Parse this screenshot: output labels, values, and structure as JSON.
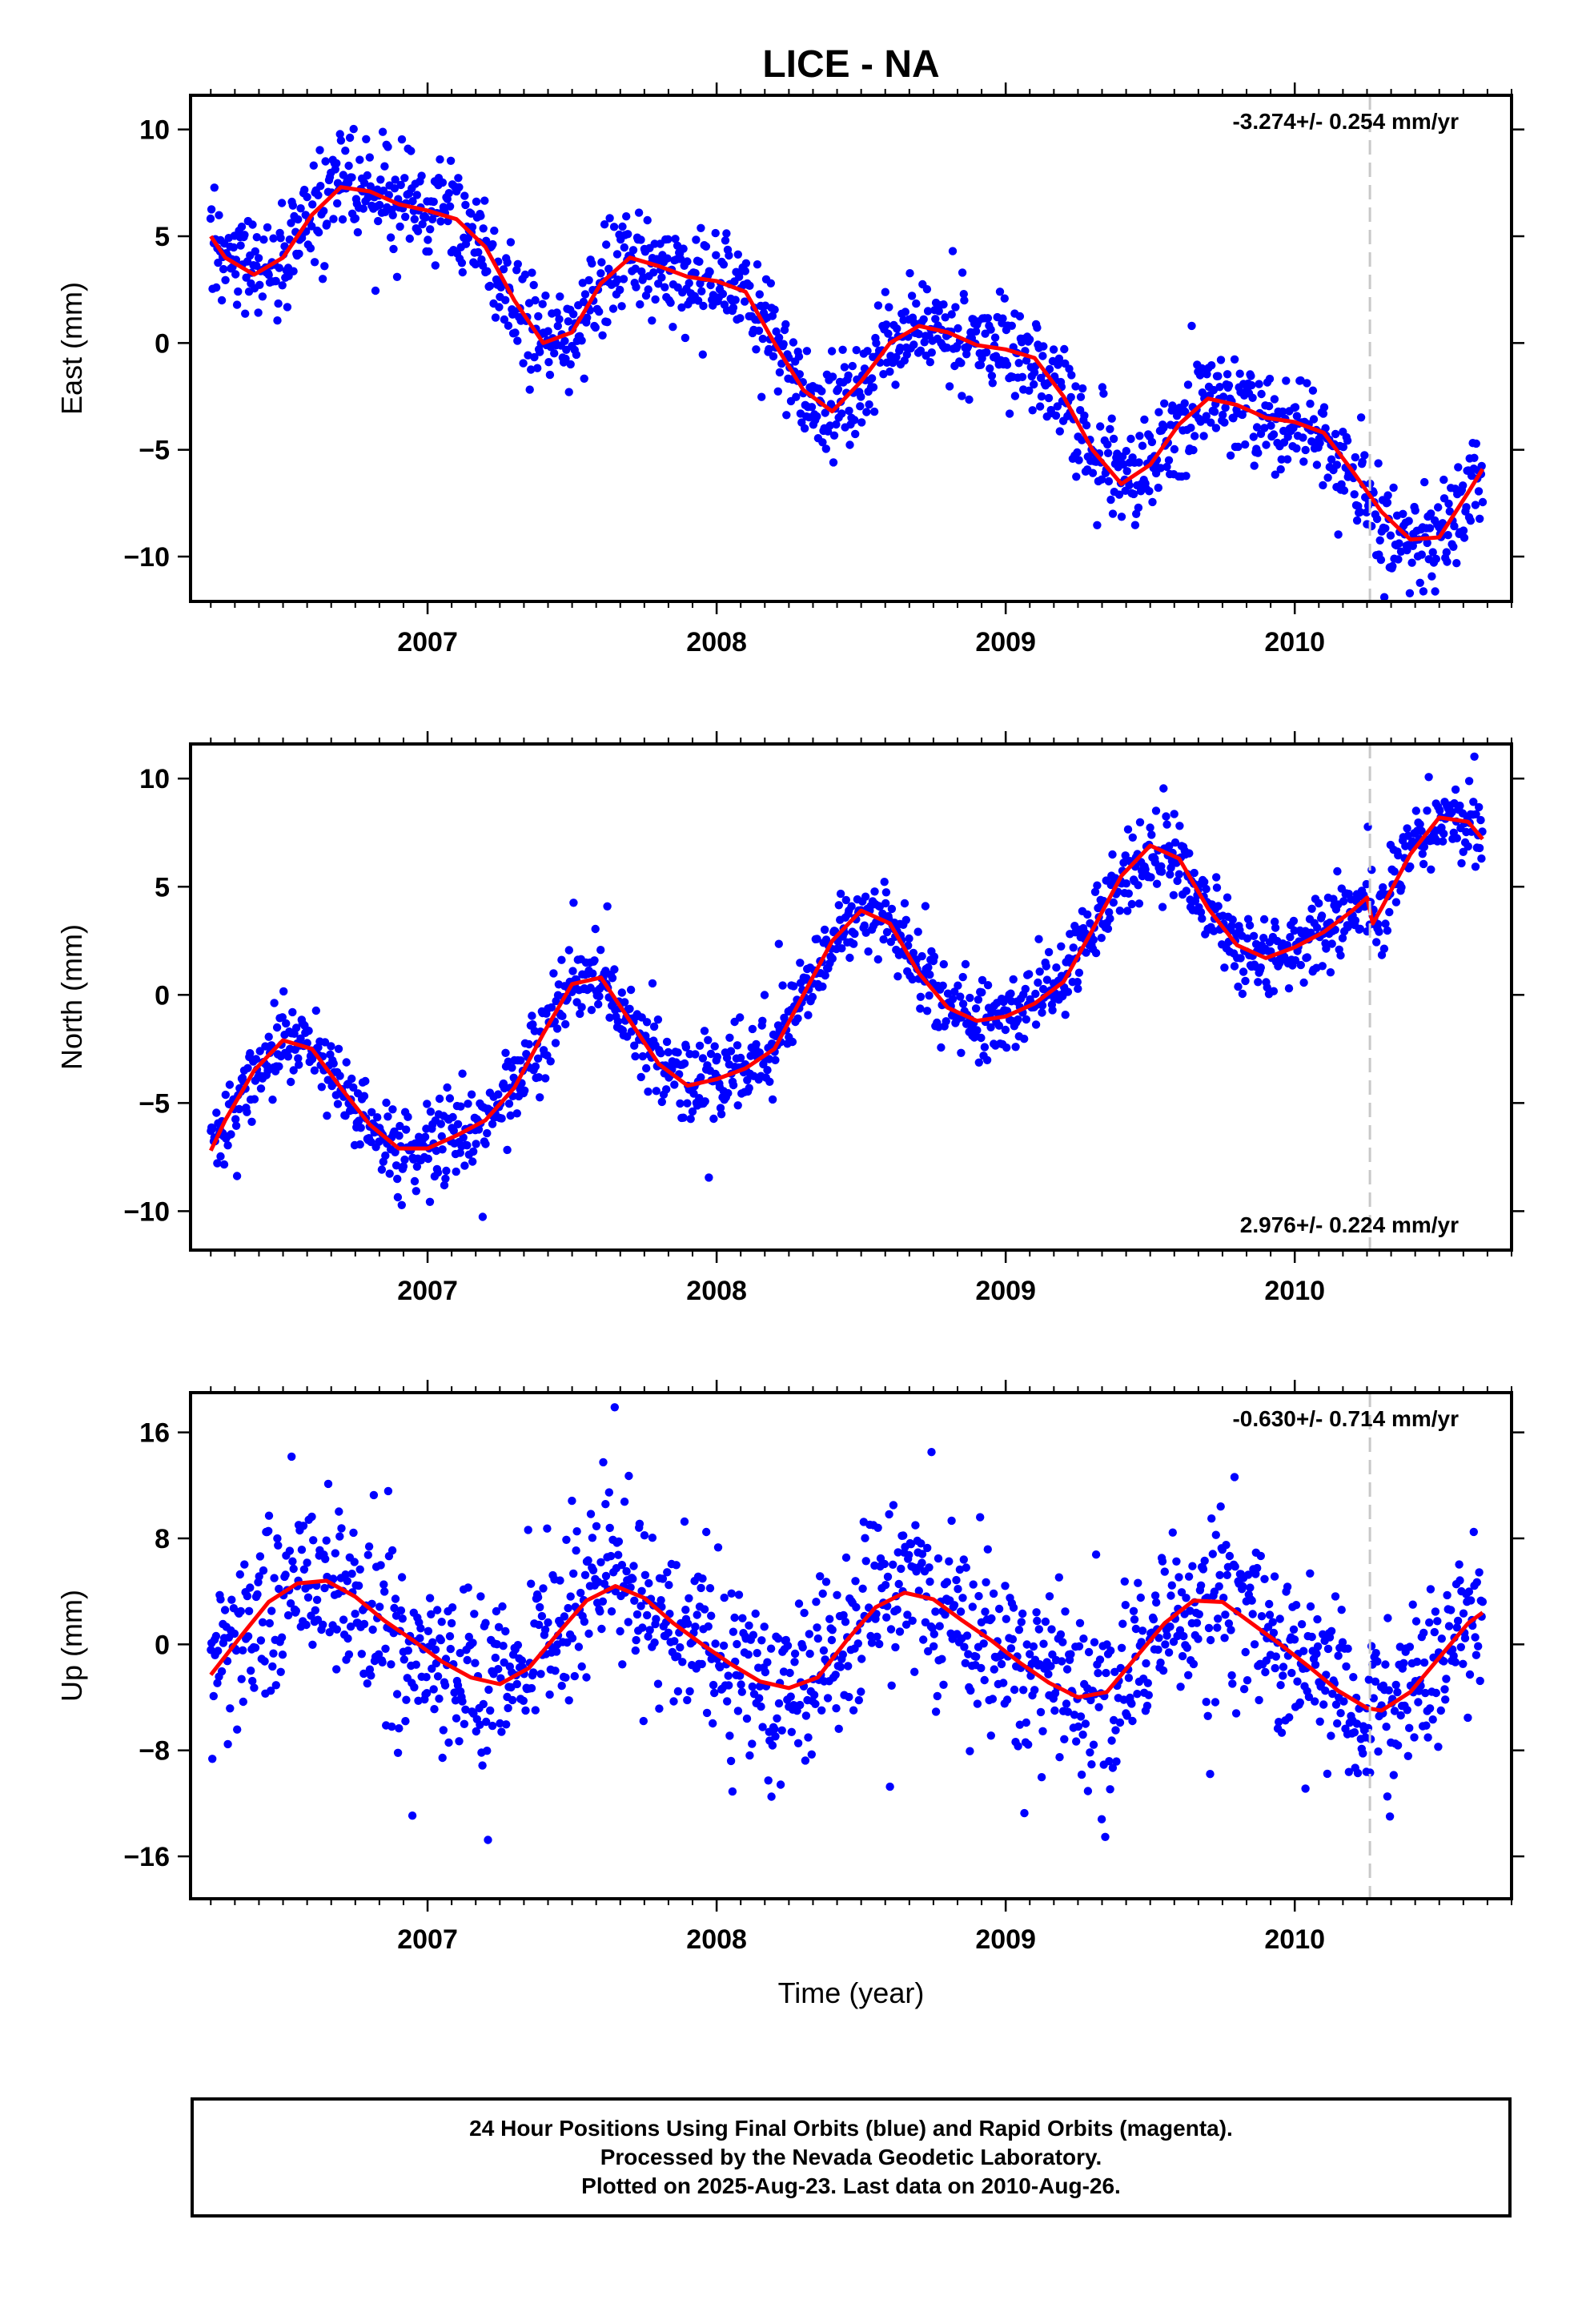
{
  "title": "LICE - NA",
  "footer": {
    "line1": "24 Hour Positions Using Final Orbits (blue) and Rapid Orbits (magenta).",
    "line2": "Processed by the Nevada Geodetic Laboratory.",
    "line3": "Plotted on 2025-Aug-23. Last data on 2010-Aug-26."
  },
  "colors": {
    "points": "#0000ff",
    "fit": "#ff0000",
    "break_line": "#c8c8c8",
    "frame": "#000000"
  },
  "chart_data": [
    {
      "type": "scatter",
      "component": "east",
      "ylabel": "East (mm)",
      "xlabel": "",
      "rate_text": "-3.274+/- 0.254 mm/yr",
      "rate_position": "top-right",
      "xlim": [
        2006.18,
        2010.75
      ],
      "ylim": [
        -12.1,
        11.6
      ],
      "x_ticks": [
        2007,
        2008,
        2009,
        2010
      ],
      "x_tick_labels": [
        "2007",
        "2008",
        "2009",
        "2010"
      ],
      "y_ticks": [
        10,
        5,
        0,
        -5,
        -10
      ],
      "y_tick_labels": [
        "10",
        "5",
        "0",
        "−5",
        "−10"
      ],
      "break_x": 2010.26,
      "x_start": 2006.25,
      "x_end": 2010.65,
      "fit_points": [
        [
          2006.25,
          5.0
        ],
        [
          2006.3,
          4.0
        ],
        [
          2006.4,
          3.2
        ],
        [
          2006.5,
          4.0
        ],
        [
          2006.6,
          6.0
        ],
        [
          2006.7,
          7.3
        ],
        [
          2006.8,
          7.1
        ],
        [
          2006.9,
          6.5
        ],
        [
          2007.0,
          6.2
        ],
        [
          2007.1,
          5.8
        ],
        [
          2007.2,
          4.5
        ],
        [
          2007.3,
          2.0
        ],
        [
          2007.4,
          0.0
        ],
        [
          2007.5,
          0.5
        ],
        [
          2007.6,
          2.8
        ],
        [
          2007.7,
          4.0
        ],
        [
          2007.8,
          3.6
        ],
        [
          2007.9,
          3.1
        ],
        [
          2008.0,
          2.9
        ],
        [
          2008.1,
          2.4
        ],
        [
          2008.2,
          0.0
        ],
        [
          2008.3,
          -2.2
        ],
        [
          2008.4,
          -3.2
        ],
        [
          2008.5,
          -1.8
        ],
        [
          2008.6,
          0.0
        ],
        [
          2008.7,
          0.8
        ],
        [
          2008.8,
          0.5
        ],
        [
          2008.9,
          -0.1
        ],
        [
          2009.0,
          -0.3
        ],
        [
          2009.1,
          -0.7
        ],
        [
          2009.2,
          -2.5
        ],
        [
          2009.3,
          -5.0
        ],
        [
          2009.4,
          -6.6
        ],
        [
          2009.5,
          -5.7
        ],
        [
          2009.6,
          -3.8
        ],
        [
          2009.7,
          -2.6
        ],
        [
          2009.8,
          -2.9
        ],
        [
          2009.9,
          -3.5
        ],
        [
          2010.0,
          -3.7
        ],
        [
          2010.1,
          -4.2
        ],
        [
          2010.2,
          -6.0
        ],
        [
          2010.3,
          -7.9
        ],
        [
          2010.4,
          -9.2
        ],
        [
          2010.5,
          -9.1
        ],
        [
          2010.6,
          -7.0
        ],
        [
          2010.65,
          -5.9
        ]
      ],
      "n_points": 1400,
      "scatter_sigma": 1.2
    },
    {
      "type": "scatter",
      "component": "north",
      "ylabel": "North (mm)",
      "xlabel": "",
      "rate_text": "2.976+/- 0.224 mm/yr",
      "rate_position": "bottom-right",
      "xlim": [
        2006.18,
        2010.75
      ],
      "ylim": [
        -11.8,
        11.6
      ],
      "x_ticks": [
        2007,
        2008,
        2009,
        2010
      ],
      "x_tick_labels": [
        "2007",
        "2008",
        "2009",
        "2010"
      ],
      "y_ticks": [
        10,
        5,
        0,
        -5,
        -10
      ],
      "y_tick_labels": [
        "10",
        "5",
        "0",
        "−5",
        "−10"
      ],
      "break_x": 2010.26,
      "x_start": 2006.25,
      "x_end": 2010.65,
      "fit_points": [
        [
          2006.25,
          -7.2
        ],
        [
          2006.3,
          -5.8
        ],
        [
          2006.4,
          -3.5
        ],
        [
          2006.5,
          -2.1
        ],
        [
          2006.6,
          -2.5
        ],
        [
          2006.7,
          -4.3
        ],
        [
          2006.8,
          -6.0
        ],
        [
          2006.9,
          -7.1
        ],
        [
          2007.0,
          -7.1
        ],
        [
          2007.1,
          -6.5
        ],
        [
          2007.2,
          -5.8
        ],
        [
          2007.3,
          -4.3
        ],
        [
          2007.4,
          -1.8
        ],
        [
          2007.5,
          0.5
        ],
        [
          2007.6,
          0.8
        ],
        [
          2007.7,
          -1.2
        ],
        [
          2007.8,
          -3.2
        ],
        [
          2007.9,
          -4.2
        ],
        [
          2008.0,
          -3.9
        ],
        [
          2008.1,
          -3.4
        ],
        [
          2008.2,
          -2.5
        ],
        [
          2008.3,
          0.0
        ],
        [
          2008.4,
          2.5
        ],
        [
          2008.5,
          3.9
        ],
        [
          2008.6,
          3.3
        ],
        [
          2008.7,
          1.0
        ],
        [
          2008.8,
          -0.6
        ],
        [
          2008.9,
          -1.2
        ],
        [
          2009.0,
          -1.0
        ],
        [
          2009.1,
          -0.4
        ],
        [
          2009.2,
          0.6
        ],
        [
          2009.3,
          3.0
        ],
        [
          2009.4,
          5.5
        ],
        [
          2009.5,
          6.9
        ],
        [
          2009.6,
          6.3
        ],
        [
          2009.7,
          4.0
        ],
        [
          2009.8,
          2.3
        ],
        [
          2009.9,
          1.7
        ],
        [
          2010.0,
          2.2
        ],
        [
          2010.1,
          2.9
        ],
        [
          2010.2,
          3.9
        ],
        [
          2010.25,
          4.5
        ],
        [
          2010.27,
          3.3
        ],
        [
          2010.3,
          4.0
        ],
        [
          2010.4,
          6.5
        ],
        [
          2010.5,
          8.2
        ],
        [
          2010.6,
          8.0
        ],
        [
          2010.65,
          7.2
        ]
      ],
      "n_points": 1400,
      "scatter_sigma": 0.9
    },
    {
      "type": "scatter",
      "component": "up",
      "ylabel": "Up (mm)",
      "xlabel": "Time (year)",
      "rate_text": "-0.630+/- 0.714 mm/yr",
      "rate_position": "top-right",
      "xlim": [
        2006.18,
        2010.75
      ],
      "ylim": [
        -19.2,
        19.0
      ],
      "x_ticks": [
        2007,
        2008,
        2009,
        2010
      ],
      "x_tick_labels": [
        "2007",
        "2008",
        "2009",
        "2010"
      ],
      "y_ticks": [
        16,
        8,
        0,
        -8,
        -16
      ],
      "y_tick_labels": [
        "16",
        "8",
        "0",
        "−8",
        "−16"
      ],
      "break_x": 2010.26,
      "x_start": 2006.25,
      "x_end": 2010.65,
      "fit_points": [
        [
          2006.25,
          -2.3
        ],
        [
          2006.35,
          0.5
        ],
        [
          2006.45,
          3.2
        ],
        [
          2006.55,
          4.6
        ],
        [
          2006.65,
          4.8
        ],
        [
          2006.75,
          3.6
        ],
        [
          2006.85,
          1.8
        ],
        [
          2006.95,
          0.3
        ],
        [
          2007.05,
          -1.3
        ],
        [
          2007.15,
          -2.5
        ],
        [
          2007.25,
          -3.0
        ],
        [
          2007.35,
          -1.8
        ],
        [
          2007.45,
          0.8
        ],
        [
          2007.55,
          3.3
        ],
        [
          2007.65,
          4.4
        ],
        [
          2007.75,
          3.5
        ],
        [
          2007.85,
          1.6
        ],
        [
          2007.95,
          0.0
        ],
        [
          2008.05,
          -1.5
        ],
        [
          2008.15,
          -2.8
        ],
        [
          2008.25,
          -3.3
        ],
        [
          2008.35,
          -2.5
        ],
        [
          2008.45,
          0.3
        ],
        [
          2008.55,
          2.8
        ],
        [
          2008.65,
          3.9
        ],
        [
          2008.75,
          3.4
        ],
        [
          2008.85,
          1.8
        ],
        [
          2008.95,
          0.3
        ],
        [
          2009.05,
          -1.4
        ],
        [
          2009.15,
          -2.9
        ],
        [
          2009.25,
          -4.0
        ],
        [
          2009.35,
          -3.6
        ],
        [
          2009.45,
          -1.0
        ],
        [
          2009.55,
          1.6
        ],
        [
          2009.65,
          3.3
        ],
        [
          2009.75,
          3.2
        ],
        [
          2009.85,
          1.6
        ],
        [
          2009.95,
          0.0
        ],
        [
          2010.05,
          -1.7
        ],
        [
          2010.15,
          -3.5
        ],
        [
          2010.25,
          -4.8
        ],
        [
          2010.3,
          -5.0
        ],
        [
          2010.4,
          -3.6
        ],
        [
          2010.5,
          -1.0
        ],
        [
          2010.6,
          1.6
        ],
        [
          2010.65,
          2.4
        ]
      ],
      "n_points": 1400,
      "scatter_sigma": 3.3
    }
  ]
}
